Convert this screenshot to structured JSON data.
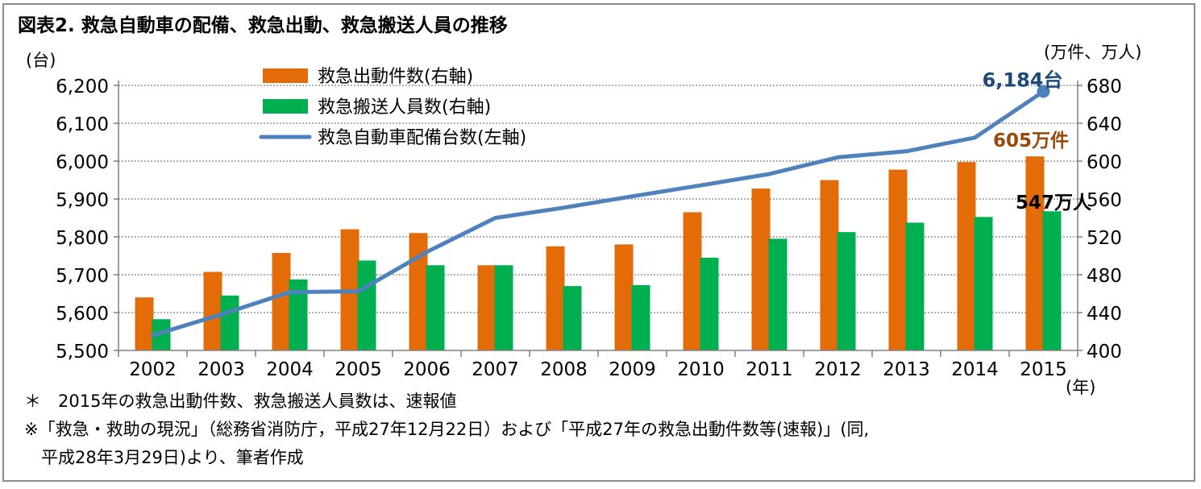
{
  "title": "図表2. 救急自動車の配備、救急出動、救急搬送人員の推移",
  "notes": [
    "＊　2015年の救急出動件数、救急搬送人員数は、速報値",
    "※「救急・救助の現況」（総務省消防庁，平成27年12月22日）および「平成27年の救急出動件数等(速報)」(同,",
    "　平成28年3月29日)より、筆者作成"
  ],
  "chart_data": {
    "type": "bar",
    "categories": [
      "2002",
      "2003",
      "2004",
      "2005",
      "2006",
      "2007",
      "2008",
      "2009",
      "2010",
      "2011",
      "2012",
      "2013",
      "2014",
      "2015"
    ],
    "x_unit": "(年)",
    "y_left": {
      "unit": "(台)",
      "range": [
        5500,
        6200
      ],
      "ticks": [
        5500,
        5600,
        5700,
        5800,
        5900,
        6000,
        6100,
        6200
      ],
      "tick_labels": [
        "5,500",
        "5,600",
        "5,700",
        "5,800",
        "5,900",
        "6,000",
        "6,100",
        "6,200"
      ]
    },
    "y_right": {
      "unit": "(万件、万人)",
      "range": [
        400,
        680
      ],
      "ticks": [
        400,
        440,
        480,
        520,
        560,
        600,
        640,
        680
      ],
      "tick_labels": [
        "400",
        "440",
        "480",
        "520",
        "560",
        "600",
        "640",
        "680"
      ]
    },
    "grid": "horizontal dotted",
    "legend_position": "top-left",
    "series": [
      {
        "name": "救急出動件数(右軸)",
        "type": "bar",
        "axis": "right",
        "color": "#e36c09",
        "values": [
          456,
          483,
          503,
          528,
          524,
          490,
          510,
          512,
          546,
          571,
          580,
          591,
          599,
          605
        ]
      },
      {
        "name": "救急搬送人員数(右軸)",
        "type": "bar",
        "axis": "right",
        "color": "#00b050",
        "values": [
          433,
          458,
          475,
          495,
          490,
          490,
          468,
          469,
          498,
          518,
          525,
          535,
          541,
          547
        ]
      },
      {
        "name": "救急自動車配備台数(左軸)",
        "type": "line",
        "axis": "left",
        "color": "#4f81bd",
        "values": [
          5540,
          5595,
          5654,
          5656,
          5760,
          5850,
          5877,
          5907,
          5936,
          5966,
          6010,
          6026,
          6062,
          6184
        ]
      }
    ],
    "annotations": [
      {
        "text": "6,184台",
        "series": 2,
        "index": 13,
        "color": "#1f497d"
      },
      {
        "text": "605万件",
        "series": 0,
        "index": 13,
        "color": "#984807"
      },
      {
        "text": "547万人",
        "series": 1,
        "index": 13,
        "color": "#000000"
      }
    ]
  }
}
